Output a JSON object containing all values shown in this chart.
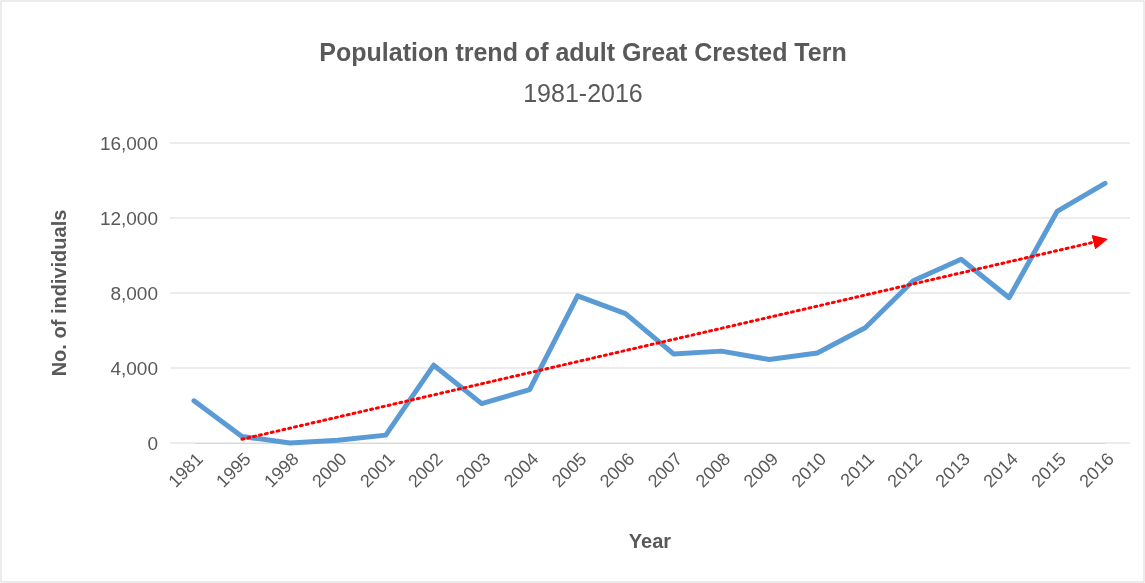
{
  "chart_data": {
    "type": "line",
    "title": "Population trend of adult Great Crested Tern",
    "subtitle": "1981-2016",
    "xlabel": "Year",
    "ylabel": "No. of individuals",
    "categories": [
      "1981",
      "1995",
      "1998",
      "2000",
      "2001",
      "2002",
      "2003",
      "2004",
      "2005",
      "2006",
      "2007",
      "2008",
      "2009",
      "2010",
      "2011",
      "2012",
      "2013",
      "2014",
      "2015",
      "2016"
    ],
    "series": [
      {
        "color": "#5b9bd5",
        "line_style": "solid",
        "values": [
          2250,
          350,
          0,
          150,
          420,
          4150,
          2100,
          2850,
          7850,
          6900,
          4750,
          4900,
          4450,
          4800,
          6150,
          8650,
          9800,
          7750,
          12350,
          13850
        ]
      },
      {
        "type": "line",
        "color": "#ff0000",
        "line_style": "dotted",
        "values": [
          null,
          200,
          null,
          null,
          null,
          null,
          null,
          null,
          null,
          null,
          null,
          null,
          null,
          null,
          null,
          null,
          null,
          null,
          null,
          10850
        ]
      }
    ],
    "ylim": [
      0,
      16000
    ],
    "yticks": [
      {
        "value": 0,
        "label": "0"
      },
      {
        "value": 4000,
        "label": "4,000"
      },
      {
        "value": 8000,
        "label": "8,000"
      },
      {
        "value": 12000,
        "label": "12,000"
      },
      {
        "value": 16000,
        "label": "16,000"
      }
    ],
    "grid": "y",
    "marker": "none"
  }
}
